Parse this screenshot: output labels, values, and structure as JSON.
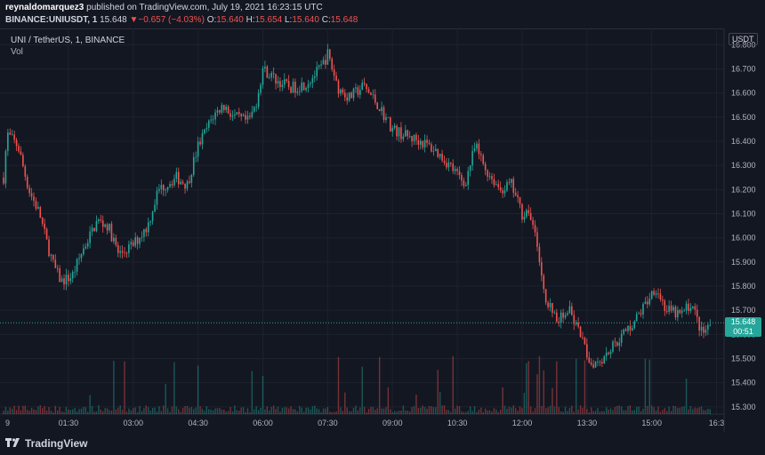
{
  "header": {
    "author": "reynaldomarquez3",
    "published": "published on TradingView.com, July 19, 2021 16:23:15 UTC",
    "symbol": "BINANCE:UNIUSDT, 1",
    "last": "15.648",
    "change_arrow": "▼",
    "change": "−0.657 (−4.03%)",
    "o_label": "O:",
    "o": "15.640",
    "h_label": "H:",
    "h": "15.654",
    "l_label": "L:",
    "l": "15.640",
    "c_label": "C:",
    "c": "15.648"
  },
  "legend": {
    "title": "UNI / TetherUS, 1, BINANCE",
    "volume_label": "Vol"
  },
  "axis": {
    "unit": "USDT"
  },
  "price_tag": {
    "price": "15.648",
    "countdown": "00:51"
  },
  "footer": {
    "brand": "TradingView",
    "logo_icon": "tradingview-logo-icon"
  },
  "colors": {
    "up": "#26a69a",
    "down": "#ef5350",
    "background": "#131722",
    "grid": "#1e222d"
  },
  "chart_data": {
    "type": "candlestick",
    "ylabel_unit": "USDT",
    "ylim": [
      15.27,
      16.86
    ],
    "y_ticks": [
      15.3,
      15.4,
      15.5,
      15.6,
      15.7,
      15.8,
      15.9,
      16.0,
      16.1,
      16.2,
      16.3,
      16.4,
      16.5,
      16.6,
      16.7,
      16.8
    ],
    "x_ticks": [
      "9",
      "01:30",
      "03:00",
      "04:30",
      "06:00",
      "07:30",
      "09:00",
      "10:30",
      "12:00",
      "13:30",
      "15:00",
      "16:3"
    ],
    "last_price": 15.648,
    "price_path": [
      {
        "t": "00:00",
        "v": 16.25
      },
      {
        "t": "00:05",
        "v": 16.43
      },
      {
        "t": "00:20",
        "v": 16.38
      },
      {
        "t": "00:35",
        "v": 16.2
      },
      {
        "t": "00:50",
        "v": 16.1
      },
      {
        "t": "01:00",
        "v": 15.98
      },
      {
        "t": "01:10",
        "v": 15.88
      },
      {
        "t": "01:20",
        "v": 15.82
      },
      {
        "t": "01:35",
        "v": 15.84
      },
      {
        "t": "01:50",
        "v": 15.95
      },
      {
        "t": "02:10",
        "v": 16.07
      },
      {
        "t": "02:25",
        "v": 16.05
      },
      {
        "t": "02:40",
        "v": 15.93
      },
      {
        "t": "03:00",
        "v": 15.97
      },
      {
        "t": "03:20",
        "v": 16.05
      },
      {
        "t": "03:35",
        "v": 16.2
      },
      {
        "t": "04:00",
        "v": 16.25
      },
      {
        "t": "04:15",
        "v": 16.22
      },
      {
        "t": "04:30",
        "v": 16.38
      },
      {
        "t": "04:50",
        "v": 16.5
      },
      {
        "t": "05:05",
        "v": 16.55
      },
      {
        "t": "05:20",
        "v": 16.5
      },
      {
        "t": "05:40",
        "v": 16.48
      },
      {
        "t": "05:50",
        "v": 16.55
      },
      {
        "t": "06:00",
        "v": 16.7
      },
      {
        "t": "06:20",
        "v": 16.65
      },
      {
        "t": "06:40",
        "v": 16.62
      },
      {
        "t": "07:00",
        "v": 16.64
      },
      {
        "t": "07:20",
        "v": 16.7
      },
      {
        "t": "07:30",
        "v": 16.76
      },
      {
        "t": "07:45",
        "v": 16.62
      },
      {
        "t": "08:00",
        "v": 16.58
      },
      {
        "t": "08:20",
        "v": 16.63
      },
      {
        "t": "08:40",
        "v": 16.55
      },
      {
        "t": "09:00",
        "v": 16.45
      },
      {
        "t": "09:20",
        "v": 16.42
      },
      {
        "t": "09:40",
        "v": 16.4
      },
      {
        "t": "10:00",
        "v": 16.36
      },
      {
        "t": "10:20",
        "v": 16.3
      },
      {
        "t": "10:40",
        "v": 16.22
      },
      {
        "t": "10:55",
        "v": 16.38
      },
      {
        "t": "11:10",
        "v": 16.28
      },
      {
        "t": "11:30",
        "v": 16.2
      },
      {
        "t": "11:45",
        "v": 16.22
      },
      {
        "t": "12:00",
        "v": 16.1
      },
      {
        "t": "12:10",
        "v": 16.12
      },
      {
        "t": "12:20",
        "v": 15.98
      },
      {
        "t": "12:35",
        "v": 15.72
      },
      {
        "t": "12:50",
        "v": 15.67
      },
      {
        "t": "13:05",
        "v": 15.7
      },
      {
        "t": "13:20",
        "v": 15.6
      },
      {
        "t": "13:35",
        "v": 15.48
      },
      {
        "t": "13:50",
        "v": 15.5
      },
      {
        "t": "14:05",
        "v": 15.55
      },
      {
        "t": "14:20",
        "v": 15.6
      },
      {
        "t": "14:35",
        "v": 15.65
      },
      {
        "t": "14:50",
        "v": 15.72
      },
      {
        "t": "15:05",
        "v": 15.8
      },
      {
        "t": "15:20",
        "v": 15.7
      },
      {
        "t": "15:40",
        "v": 15.68
      },
      {
        "t": "15:55",
        "v": 15.73
      },
      {
        "t": "16:10",
        "v": 15.6
      },
      {
        "t": "16:23",
        "v": 15.648
      }
    ]
  }
}
